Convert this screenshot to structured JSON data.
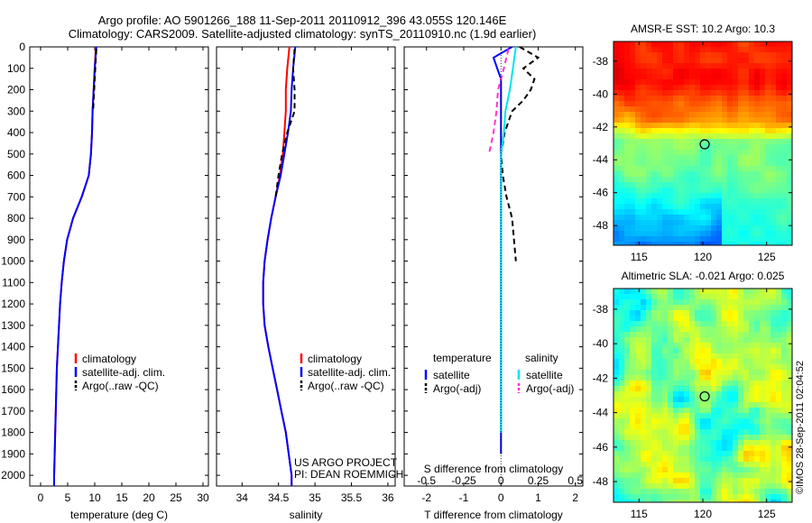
{
  "header": {
    "line1": "Argo profile: AO 5901266_188 11-Sep-2011 20110912_396 43.055S 120.146E",
    "line2": "Climatology: CARS2009. Satellite-adjusted climatology: synTS_20110910.nc (1.9d earlier)"
  },
  "side_note": "©IMOS 28-Sep-2011 02:04:52",
  "colors": {
    "climatology": "#ff0000",
    "satellite": "#0000ff",
    "argo": "#000000",
    "salinity_sat": "#00e5ee",
    "salinity_argo": "#ff33cc"
  },
  "chart_data": [
    {
      "type": "line",
      "id": "temperature",
      "xlabel": "temperature (deg C)",
      "ylabel": "",
      "xlim": [
        -2,
        31
      ],
      "ylim": [
        2050,
        0
      ],
      "xticks": [
        0,
        5,
        10,
        15,
        20,
        25,
        30
      ],
      "yticks": [
        0,
        100,
        200,
        300,
        400,
        500,
        600,
        700,
        800,
        900,
        1000,
        1100,
        1200,
        1300,
        1400,
        1500,
        1600,
        1700,
        1800,
        1900,
        2000
      ],
      "legend": [
        "climatology",
        "satellite-adj. clim.",
        "Argo(..raw -QC)"
      ],
      "legend_position": "lower-center",
      "series": [
        {
          "name": "climatology",
          "color": "#ff0000",
          "dash": false,
          "depth": [
            0,
            100,
            200,
            300,
            400,
            500,
            600,
            700,
            800,
            900,
            1000,
            1100,
            1200,
            1300,
            1400,
            1500,
            1600,
            1700,
            1800,
            1900,
            2000,
            2050
          ],
          "values": [
            10.2,
            10.0,
            9.8,
            9.6,
            9.5,
            9.3,
            8.9,
            7.6,
            6.0,
            4.9,
            4.3,
            3.9,
            3.6,
            3.4,
            3.2,
            3.0,
            2.9,
            2.8,
            2.7,
            2.6,
            2.5,
            2.5
          ]
        },
        {
          "name": "satellite-adj. clim.",
          "color": "#0000ff",
          "dash": false,
          "depth": [
            0,
            100,
            200,
            300,
            400,
            500,
            600,
            700,
            800,
            900,
            1000,
            1100,
            1200,
            1300,
            1400,
            1500,
            1600,
            1700,
            1800,
            1900,
            2000,
            2050
          ],
          "values": [
            10.3,
            10.0,
            9.8,
            9.6,
            9.5,
            9.3,
            8.9,
            7.6,
            6.0,
            4.9,
            4.3,
            3.9,
            3.6,
            3.4,
            3.2,
            3.0,
            2.9,
            2.8,
            2.7,
            2.6,
            2.5,
            2.5
          ]
        },
        {
          "name": "Argo(..raw -QC)",
          "color": "#000000",
          "dash": true,
          "depth": [
            10,
            100,
            200,
            300
          ],
          "values": [
            10.3,
            10.1,
            9.9,
            9.7
          ]
        }
      ]
    },
    {
      "type": "line",
      "id": "salinity",
      "xlabel": "salinity",
      "ylabel": "",
      "xlim": [
        33.65,
        36.1
      ],
      "ylim": [
        2050,
        0
      ],
      "xticks": [
        34,
        34.5,
        35,
        35.5,
        36
      ],
      "legend": [
        "climatology",
        "satellite-adj. clim.",
        "Argo(..raw -QC)"
      ],
      "legend_position": "lower-right",
      "annotations": [
        "US ARGO PROJECT",
        "PI: DEAN ROEMMICH"
      ],
      "series": [
        {
          "name": "climatology",
          "color": "#ff0000",
          "dash": false,
          "depth": [
            0,
            100,
            200,
            300,
            400,
            500,
            600,
            700,
            800,
            900,
            1000,
            1100,
            1200,
            1300,
            1400,
            1500,
            1600,
            1700,
            1800,
            1900,
            2000,
            2050
          ],
          "values": [
            34.65,
            34.62,
            34.6,
            34.6,
            34.58,
            34.56,
            34.52,
            34.46,
            34.4,
            34.35,
            34.31,
            34.29,
            34.29,
            34.31,
            34.36,
            34.42,
            34.48,
            34.54,
            34.6,
            34.64,
            34.68,
            34.68
          ]
        },
        {
          "name": "satellite-adj. clim.",
          "color": "#0000ff",
          "dash": false,
          "depth": [
            0,
            100,
            200,
            300,
            400,
            500,
            600,
            700,
            800,
            900,
            1000,
            1100,
            1200,
            1300,
            1400,
            1500,
            1600,
            1700,
            1800,
            1900,
            2000,
            2050
          ],
          "values": [
            34.73,
            34.7,
            34.68,
            34.67,
            34.63,
            34.58,
            34.53,
            34.46,
            34.4,
            34.35,
            34.31,
            34.29,
            34.29,
            34.31,
            34.36,
            34.42,
            34.48,
            34.54,
            34.6,
            34.64,
            34.68,
            34.68
          ]
        },
        {
          "name": "Argo(..raw -QC)",
          "color": "#000000",
          "dash": true,
          "depth": [
            10,
            100,
            200,
            300,
            400,
            500,
            600,
            700
          ],
          "values": [
            34.72,
            34.7,
            34.72,
            34.72,
            34.62,
            34.55,
            34.5,
            34.46
          ]
        }
      ]
    },
    {
      "type": "line",
      "id": "difference",
      "xlabel": "T difference from climatology",
      "xlabel_top": "S difference from climatology",
      "xlim": [
        -2.6,
        2.2
      ],
      "ylim": [
        2050,
        0
      ],
      "xticks": [
        -2,
        -1,
        0,
        1,
        2
      ],
      "sticks": [
        {
          "value": -0.5,
          "label": "-0.5"
        },
        {
          "value": -0.25,
          "label": "-0.25"
        },
        {
          "value": 0,
          "label": "0"
        },
        {
          "value": 0.25,
          "label": "0.25"
        },
        {
          "value": 0.5,
          "label": "0.5"
        }
      ],
      "s_scale": 4,
      "legend_titles": [
        "temperature",
        "salinity"
      ],
      "legend": [
        "satellite",
        "Argo(-adj)",
        "satellite",
        "Argo(-adj)"
      ],
      "series": [
        {
          "name": "satellite",
          "group": "temperature",
          "color": "#0000ff",
          "dash": false,
          "depth": [
            0,
            50,
            100,
            150,
            200,
            250,
            300,
            350,
            400,
            500,
            600,
            800,
            1000,
            1200,
            1500,
            1800,
            1900
          ],
          "values": [
            0.3,
            -0.2,
            -0.1,
            0.0,
            0.0,
            0.0,
            0.0,
            0.0,
            0.0,
            0.0,
            0.0,
            0.0,
            0.0,
            0.0,
            0.0,
            0.0,
            0.0
          ]
        },
        {
          "name": "Argo(-adj)",
          "group": "temperature",
          "color": "#000000",
          "dash": true,
          "depth": [
            0,
            50,
            100,
            150,
            200,
            250,
            300,
            350,
            400,
            500,
            600,
            700,
            800,
            900,
            1000
          ],
          "values": [
            0.5,
            1.0,
            0.6,
            0.9,
            0.8,
            0.6,
            0.3,
            0.2,
            0.1,
            0.0,
            0.05,
            0.15,
            0.3,
            0.35,
            0.4
          ]
        },
        {
          "name": "satellite",
          "group": "salinity",
          "color": "#00e5ee",
          "dash": false,
          "depth": [
            0,
            100,
            200,
            300,
            400,
            500,
            700,
            1000,
            1500,
            1800
          ],
          "values": [
            0.1,
            0.08,
            0.06,
            0.03,
            0.02,
            0.0,
            0.0,
            0.0,
            0.0,
            0.0
          ]
        },
        {
          "name": "Argo(-adj)",
          "group": "salinity",
          "color": "#ff33cc",
          "dash": true,
          "depth": [
            10,
            100,
            200,
            300,
            400,
            500
          ],
          "values": [
            0.05,
            0.02,
            -0.02,
            -0.03,
            -0.05,
            -0.08
          ]
        }
      ]
    },
    {
      "type": "heatmap",
      "id": "sst_map",
      "title": "AMSR-E SST: 10.2 Argo: 10.3",
      "xlim": [
        113,
        127
      ],
      "ylim": [
        -49.2,
        -36.8
      ],
      "xticks": [
        115,
        120,
        125
      ],
      "yticks": [
        -38,
        -40,
        -42,
        -44,
        -46,
        -48
      ],
      "marker": {
        "lon": 120.146,
        "lat": -43.055
      }
    },
    {
      "type": "heatmap",
      "id": "sla_map",
      "title": "Altimetric SLA: -0.021 Argo: 0.025",
      "xlim": [
        113,
        127
      ],
      "ylim": [
        -49.2,
        -36.8
      ],
      "xticks": [
        115,
        120,
        125
      ],
      "yticks": [
        -38,
        -40,
        -42,
        -44,
        -46,
        -48
      ],
      "marker": {
        "lon": 120.146,
        "lat": -43.055
      }
    }
  ]
}
